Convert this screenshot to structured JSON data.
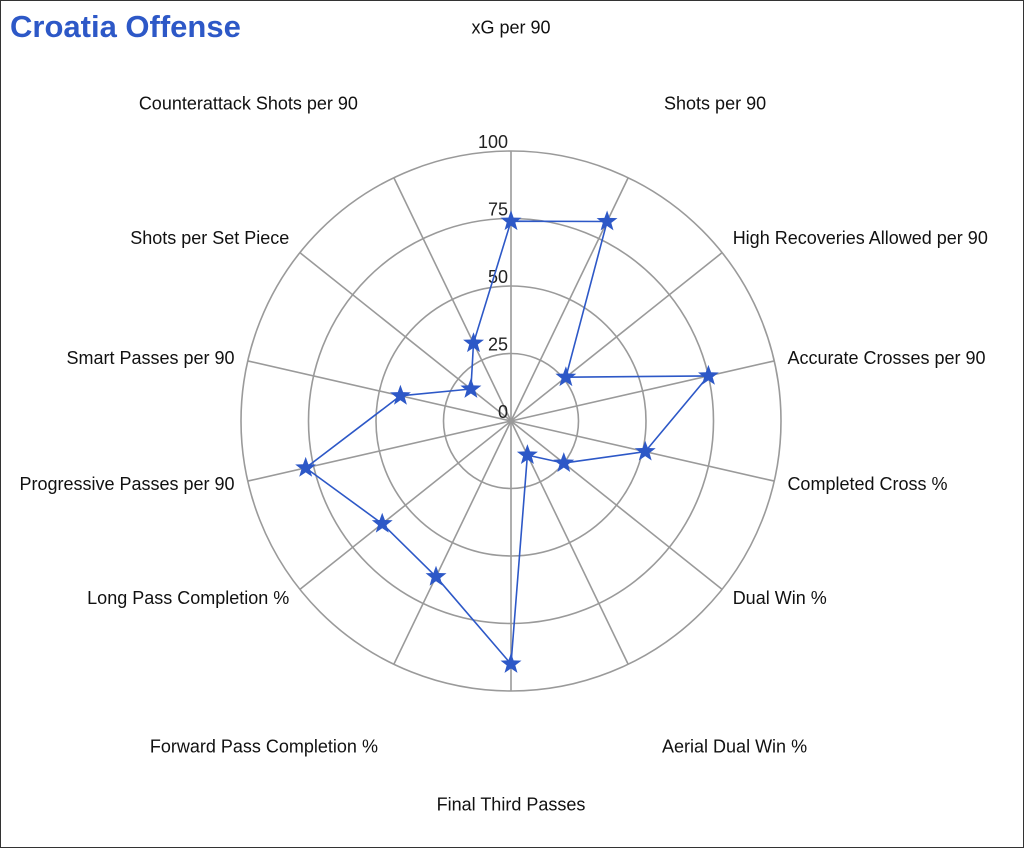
{
  "chart_data": {
    "type": "radar",
    "title": "Croatia Offense",
    "rlim": [
      0,
      100
    ],
    "rticks": [
      "0",
      "25",
      "50",
      "75",
      "100"
    ],
    "grid": true,
    "axes": [
      "xG per 90",
      "Shots per 90",
      "High Recoveries Allowed per 90",
      "Accurate Crosses per 90",
      "Completed Cross %",
      "Dual Win %",
      "Aerial Dual Win %",
      "Final Third Passes",
      "Forward Pass Completion %",
      "Long Pass Completion %",
      "Progressive Passes per 90",
      "Smart Passes per 90",
      "Shots per Set Piece",
      "Counterattack Shots per 90"
    ],
    "series": [
      {
        "values": [
          74,
          82,
          26,
          75,
          51,
          25,
          14,
          90,
          64,
          61,
          78,
          42,
          19,
          32
        ]
      }
    ],
    "colors": {
      "series": "#2d58c7",
      "grid": "#9a9a9a",
      "title": "#2d58c7"
    }
  }
}
